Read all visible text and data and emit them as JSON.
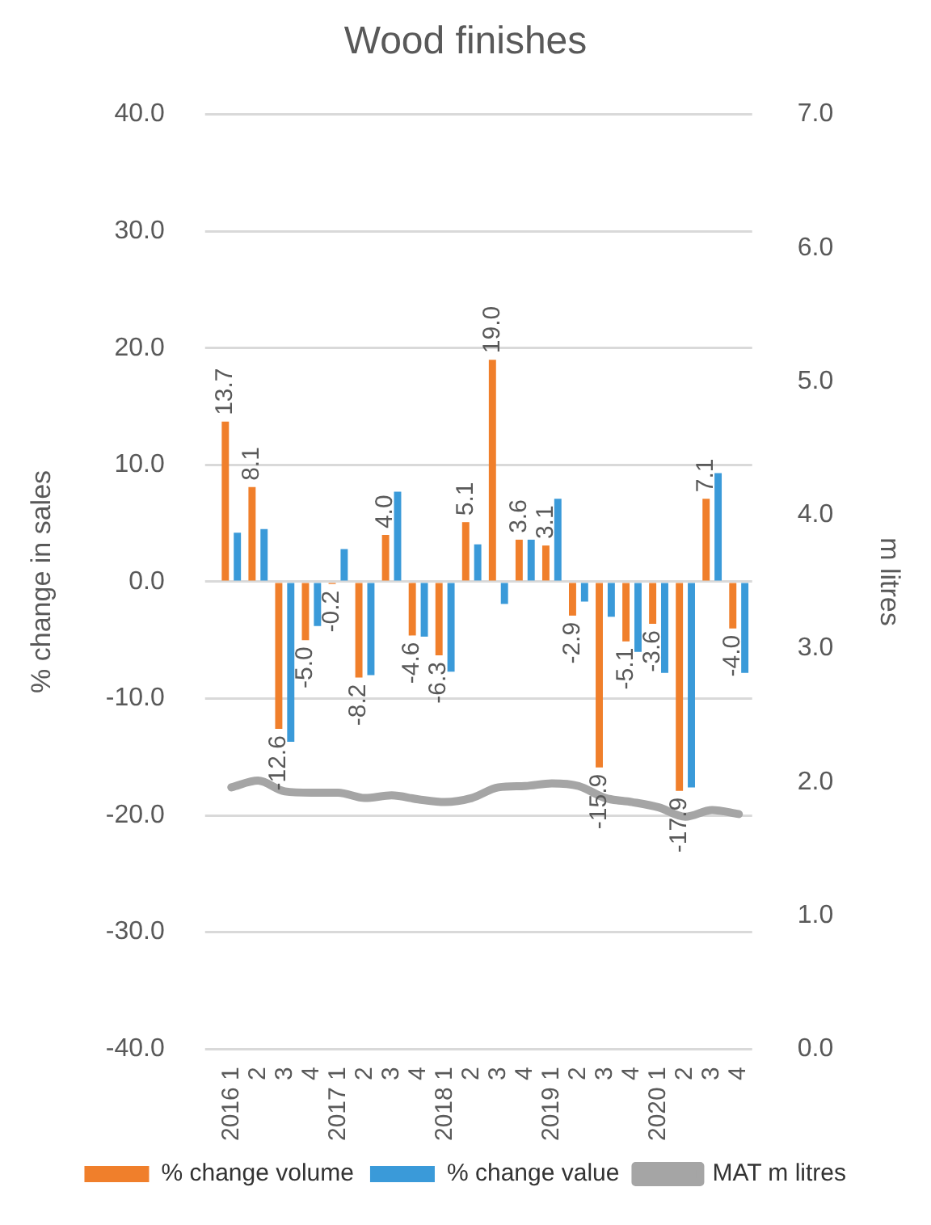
{
  "chart_data": {
    "type": "bar",
    "title": "Wood finishes",
    "ylabel": "% change in sales",
    "y2label": "m litres",
    "categories": [
      "2016 1",
      "2",
      "3",
      "4",
      "2017 1",
      "2",
      "3",
      "4",
      "2018 1",
      "2",
      "3",
      "4",
      "2019 1",
      "2",
      "3",
      "4",
      "2020 1",
      "2",
      "3",
      "4"
    ],
    "series": [
      {
        "name": "% change volume",
        "color": "#f07f2b",
        "values": [
          13.7,
          8.1,
          -12.6,
          -5.0,
          -0.2,
          -8.2,
          4.0,
          -4.6,
          -6.3,
          5.1,
          19.0,
          3.6,
          3.1,
          -2.9,
          -15.9,
          -5.1,
          -3.6,
          -17.9,
          7.1,
          -4.0
        ],
        "value_labels": [
          "13.7",
          "8.1",
          "-12.6",
          "-5.0",
          "-0.2",
          "-8.2",
          "4.0",
          "-4.6",
          "-6.3",
          "5.1",
          "19.0",
          "3.6",
          "3.1",
          "-2.9",
          "-15.9",
          "-5.1",
          "-3.6",
          "-17.9",
          "7.1",
          "-4.0"
        ]
      },
      {
        "name": "% change value",
        "color": "#3a9ad9",
        "values": [
          4.2,
          4.5,
          -13.7,
          -3.8,
          2.8,
          -8.0,
          7.7,
          -4.7,
          -7.7,
          3.2,
          -1.9,
          3.6,
          7.1,
          -1.7,
          -3.0,
          -6.0,
          -7.8,
          -17.6,
          9.3,
          -7.8
        ]
      },
      {
        "name": "MAT m litres",
        "type": "line",
        "axis": "y2",
        "color": "#a5a5a5",
        "values": [
          1.96,
          2.01,
          1.93,
          1.92,
          1.92,
          1.88,
          1.9,
          1.87,
          1.85,
          1.88,
          1.96,
          1.97,
          1.99,
          1.97,
          1.88,
          1.85,
          1.81,
          1.74,
          1.79,
          1.76
        ]
      }
    ],
    "ylim": [
      -40,
      40
    ],
    "yticks": [
      {
        "value": -40,
        "label": "-40.0"
      },
      {
        "value": -30,
        "label": "-30.0"
      },
      {
        "value": -20,
        "label": "-20.0"
      },
      {
        "value": -10,
        "label": "-10.0"
      },
      {
        "value": 0,
        "label": "0.0"
      },
      {
        "value": 10,
        "label": "10.0"
      },
      {
        "value": 20,
        "label": "20.0"
      },
      {
        "value": 30,
        "label": "30.0"
      },
      {
        "value": 40,
        "label": "40.0"
      }
    ],
    "y2lim": [
      0,
      7
    ],
    "y2ticks": [
      {
        "value": 0,
        "label": "0.0"
      },
      {
        "value": 1,
        "label": "1.0"
      },
      {
        "value": 2,
        "label": "2.0"
      },
      {
        "value": 3,
        "label": "3.0"
      },
      {
        "value": 4,
        "label": "4.0"
      },
      {
        "value": 5,
        "label": "5.0"
      },
      {
        "value": 6,
        "label": "6.0"
      },
      {
        "value": 7,
        "label": "7.0"
      }
    ],
    "grid": "y",
    "legend": "bottom",
    "marker": "none"
  }
}
